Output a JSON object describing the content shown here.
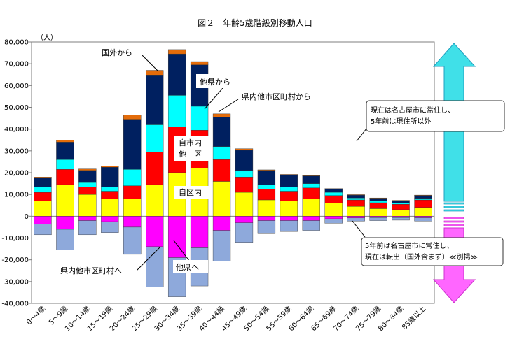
{
  "chart_data": {
    "type": "bar",
    "stacked": true,
    "title": "図２　年齢5歳階級別移動人口",
    "ylabel": "（人）",
    "ylim": [
      -40000,
      80000
    ],
    "yticks": [
      80000,
      70000,
      60000,
      50000,
      40000,
      30000,
      20000,
      10000,
      0,
      -10000,
      -20000,
      -30000,
      -40000
    ],
    "ytick_labels": [
      "80,000",
      "70,000",
      "60,000",
      "50,000",
      "40,000",
      "30,000",
      "20,000",
      "10,000",
      "0",
      "-10,000",
      "-20,000",
      "-30,000",
      "-40,000"
    ],
    "categories": [
      "0～4歳",
      "5～9歳",
      "10～14歳",
      "15～19歳",
      "20～24歳",
      "25～29歳",
      "30～34歳",
      "35～39歳",
      "40～44歳",
      "45～49歳",
      "50～54歳",
      "55～59歳",
      "60～64歳",
      "65～69歳",
      "70～74歳",
      "75～79歳",
      "80～84歳",
      "85歳以上"
    ],
    "series": [
      {
        "name": "自区内",
        "color": "#ffff00",
        "values": [
          7000,
          14500,
          10000,
          8000,
          8000,
          14500,
          20000,
          22000,
          16000,
          11000,
          7500,
          7000,
          8000,
          6000,
          4500,
          3500,
          3000,
          4000
        ]
      },
      {
        "name": "自市内他区",
        "color": "#ff0000",
        "values": [
          4000,
          7000,
          3500,
          3500,
          6000,
          15000,
          21000,
          17500,
          10000,
          7000,
          5000,
          4500,
          5000,
          3500,
          3000,
          2700,
          2500,
          3500
        ]
      },
      {
        "name": "県内他市区町村から",
        "color": "#00ffff",
        "values": [
          2500,
          4500,
          2000,
          2000,
          7500,
          12500,
          14500,
          11000,
          6000,
          3000,
          2000,
          2000,
          2000,
          1500,
          900,
          700,
          600,
          700
        ]
      },
      {
        "name": "他県から",
        "color": "#002060",
        "values": [
          4000,
          8000,
          5500,
          9000,
          23000,
          22500,
          19000,
          19000,
          13500,
          9300,
          6500,
          5500,
          3500,
          1500,
          1300,
          1300,
          1000,
          1300
        ]
      },
      {
        "name": "国外から",
        "color": "#e46c0a",
        "values": [
          500,
          1000,
          700,
          500,
          2000,
          2500,
          2000,
          1500,
          1500,
          700,
          300,
          200,
          200,
          200,
          200,
          200,
          200,
          200
        ]
      },
      {
        "name": "県内他市区町村へ",
        "color": "#ff00ff",
        "values": [
          -3500,
          -6000,
          -2000,
          -2500,
          -5000,
          -14000,
          -19000,
          -14500,
          -6500,
          -3000,
          -2000,
          -2000,
          -2000,
          -1200,
          -800,
          -600,
          -600,
          -700
        ]
      },
      {
        "name": "他県へ",
        "color": "#8ea9db",
        "values": [
          -5000,
          -9500,
          -6500,
          -5000,
          -12500,
          -18500,
          -18000,
          -17500,
          -14000,
          -9000,
          -6000,
          -5000,
          -4500,
          -2000,
          -1400,
          -1400,
          -1200,
          -1500
        ]
      }
    ]
  },
  "labels": {
    "kokugai": "国外から",
    "taken_kara": "他県から",
    "kennai_kara": "県内他市区町村から",
    "jishi_line1": "自市内",
    "jishi_line2": "他　区",
    "jiku": "自区内",
    "kennai_he": "県内他市区町村へ",
    "taken_he": "他県へ"
  },
  "callouts": {
    "top_line1": "現在は名古屋市に常住し、",
    "top_line2": "5年前は現住所以外",
    "bottom_line1": "5年前は名古屋市に常住し、",
    "bottom_line2": "現在は転出（国外含まず）≪別掲≫"
  }
}
